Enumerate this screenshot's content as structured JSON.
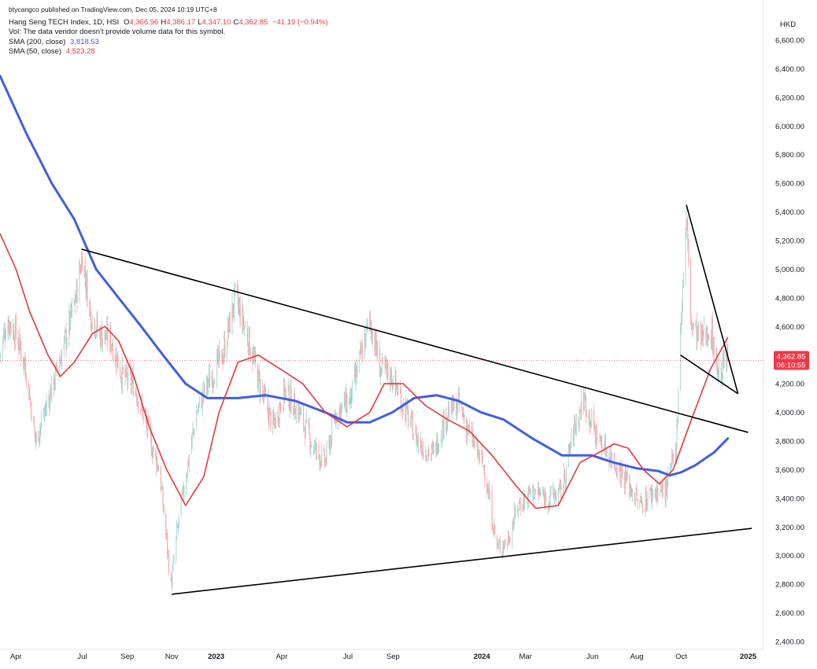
{
  "header": {
    "publisher": "btycangco published on TradingView.com, Dec 05, 2024 10:19 UTC+8",
    "symbol": "Hang Seng TECH Index, 1D, HSI",
    "ohlc": [
      {
        "k": "O",
        "v": "4,366.96"
      },
      {
        "k": "H",
        "v": "4,386.17"
      },
      {
        "k": "L",
        "v": "4,347.10"
      },
      {
        "k": "C",
        "v": "4,362.85"
      }
    ],
    "change": "−41.19 (−0.94%)",
    "vol_note": "Vol: The data vendor doesn't provide volume data for this symbol.",
    "sma200_label": "SMA (200, close)",
    "sma200_value": "3,818.53",
    "sma50_label": "SMA (50, close)",
    "sma50_value": "4,523.28"
  },
  "currency": "HKD",
  "price_badge": {
    "price": "4,362.85",
    "countdown": "06:10:55",
    "color": "#f23645"
  },
  "colors": {
    "up": "#089981",
    "down": "#f23645",
    "up_body": "#b2dfdb",
    "down_body": "#f7a9a7",
    "sma200": "#3f5fe0",
    "sma50": "#e0393e",
    "trendline": "#000000"
  },
  "chart_data": {
    "type": "candlestick",
    "title": "Hang Seng TECH Index, 1D, HSI",
    "ylabel": "HKD",
    "ylim": [
      2400,
      6700
    ],
    "y_ticks": [
      "6,600.00",
      "6,400.00",
      "6,200.00",
      "6,000.00",
      "5,800.00",
      "5,600.00",
      "5,400.00",
      "5,200.00",
      "5,000.00",
      "4,800.00",
      "4,600.00",
      "4,400.00",
      "4,200.00",
      "4,000.00",
      "3,800.00",
      "3,600.00",
      "3,400.00",
      "3,200.00",
      "3,000.00",
      "2,800.00",
      "2,600.00",
      "2,400.00"
    ],
    "x_ticks": [
      {
        "label": "Apr",
        "date": "2022-04-01",
        "bold": false
      },
      {
        "label": "Jul",
        "date": "2022-07-01",
        "bold": false
      },
      {
        "label": "Sep",
        "date": "2022-09-01",
        "bold": false
      },
      {
        "label": "Nov",
        "date": "2022-11-01",
        "bold": false
      },
      {
        "label": "2023",
        "date": "2023-01-01",
        "bold": true
      },
      {
        "label": "Apr",
        "date": "2023-04-01",
        "bold": false
      },
      {
        "label": "Jul",
        "date": "2023-07-01",
        "bold": false
      },
      {
        "label": "Sep",
        "date": "2023-09-01",
        "bold": false
      },
      {
        "label": "2024",
        "date": "2024-01-01",
        "bold": true
      },
      {
        "label": "Mar",
        "date": "2024-03-01",
        "bold": false
      },
      {
        "label": "Jun",
        "date": "2024-06-01",
        "bold": false
      },
      {
        "label": "Aug",
        "date": "2024-08-01",
        "bold": false
      },
      {
        "label": "Oct",
        "date": "2024-10-01",
        "bold": false
      },
      {
        "label": "2025",
        "date": "2025-01-01",
        "bold": true
      }
    ],
    "x_range": [
      "2022-03-10",
      "2025-01-22"
    ],
    "close_path": [
      [
        "2022-03-10",
        4400
      ],
      [
        "2022-03-20",
        4650
      ],
      [
        "2022-04-01",
        4550
      ],
      [
        "2022-04-15",
        4300
      ],
      [
        "2022-04-28",
        3800
      ],
      [
        "2022-05-10",
        4000
      ],
      [
        "2022-05-25",
        4250
      ],
      [
        "2022-06-10",
        4550
      ],
      [
        "2022-06-22",
        4800
      ],
      [
        "2022-07-01",
        5100
      ],
      [
        "2022-07-12",
        4700
      ],
      [
        "2022-07-25",
        4550
      ],
      [
        "2022-08-10",
        4500
      ],
      [
        "2022-08-25",
        4250
      ],
      [
        "2022-09-10",
        4200
      ],
      [
        "2022-09-25",
        3950
      ],
      [
        "2022-10-05",
        3750
      ],
      [
        "2022-10-15",
        3600
      ],
      [
        "2022-10-25",
        3100
      ],
      [
        "2022-10-31",
        2780
      ],
      [
        "2022-11-08",
        3150
      ],
      [
        "2022-11-20",
        3550
      ],
      [
        "2022-12-05",
        4000
      ],
      [
        "2022-12-20",
        4200
      ],
      [
        "2023-01-10",
        4400
      ],
      [
        "2023-01-27",
        4800
      ],
      [
        "2023-02-15",
        4500
      ],
      [
        "2023-03-01",
        4200
      ],
      [
        "2023-03-20",
        3900
      ],
      [
        "2023-04-05",
        4150
      ],
      [
        "2023-04-25",
        4000
      ],
      [
        "2023-05-15",
        3750
      ],
      [
        "2023-05-31",
        3650
      ],
      [
        "2023-06-15",
        4000
      ],
      [
        "2023-07-05",
        4100
      ],
      [
        "2023-07-31",
        4650
      ],
      [
        "2023-08-15",
        4300
      ],
      [
        "2023-08-31",
        4250
      ],
      [
        "2023-09-15",
        4050
      ],
      [
        "2023-10-05",
        3800
      ],
      [
        "2023-10-25",
        3700
      ],
      [
        "2023-11-15",
        4000
      ],
      [
        "2023-12-01",
        4050
      ],
      [
        "2023-12-15",
        3850
      ],
      [
        "2024-01-05",
        3600
      ],
      [
        "2024-01-22",
        3050
      ],
      [
        "2024-02-05",
        3100
      ],
      [
        "2024-02-20",
        3350
      ],
      [
        "2024-03-10",
        3450
      ],
      [
        "2024-03-31",
        3400
      ],
      [
        "2024-04-20",
        3450
      ],
      [
        "2024-05-05",
        3850
      ],
      [
        "2024-05-20",
        4100
      ],
      [
        "2024-06-05",
        3850
      ],
      [
        "2024-06-25",
        3700
      ],
      [
        "2024-07-15",
        3550
      ],
      [
        "2024-08-05",
        3350
      ],
      [
        "2024-08-25",
        3450
      ],
      [
        "2024-09-10",
        3450
      ],
      [
        "2024-09-24",
        3750
      ],
      [
        "2024-09-30",
        4600
      ],
      [
        "2024-10-08",
        5350
      ],
      [
        "2024-10-15",
        4600
      ],
      [
        "2024-10-28",
        4500
      ],
      [
        "2024-11-10",
        4600
      ],
      [
        "2024-11-22",
        4250
      ],
      [
        "2024-12-04",
        4400
      ]
    ],
    "sma200": [
      [
        "2022-03-10",
        6350
      ],
      [
        "2022-04-15",
        5950
      ],
      [
        "2022-05-20",
        5600
      ],
      [
        "2022-06-20",
        5350
      ],
      [
        "2022-07-20",
        5000
      ],
      [
        "2022-08-20",
        4800
      ],
      [
        "2022-09-20",
        4600
      ],
      [
        "2022-10-20",
        4400
      ],
      [
        "2022-11-20",
        4200
      ],
      [
        "2022-12-20",
        4100
      ],
      [
        "2023-01-31",
        4100
      ],
      [
        "2023-03-10",
        4120
      ],
      [
        "2023-04-20",
        4080
      ],
      [
        "2023-05-31",
        4000
      ],
      [
        "2023-06-30",
        3930
      ],
      [
        "2023-07-31",
        3930
      ],
      [
        "2023-08-31",
        4000
      ],
      [
        "2023-09-30",
        4100
      ],
      [
        "2023-10-31",
        4120
      ],
      [
        "2023-11-30",
        4080
      ],
      [
        "2023-12-31",
        4000
      ],
      [
        "2024-01-31",
        3950
      ],
      [
        "2024-03-10",
        3820
      ],
      [
        "2024-04-20",
        3700
      ],
      [
        "2024-05-31",
        3700
      ],
      [
        "2024-06-30",
        3650
      ],
      [
        "2024-07-31",
        3610
      ],
      [
        "2024-08-31",
        3590
      ],
      [
        "2024-09-15",
        3560
      ],
      [
        "2024-09-30",
        3580
      ],
      [
        "2024-10-20",
        3630
      ],
      [
        "2024-11-15",
        3720
      ],
      [
        "2024-12-04",
        3818
      ]
    ],
    "sma50": [
      [
        "2022-03-10",
        5250
      ],
      [
        "2022-04-01",
        5000
      ],
      [
        "2022-04-20",
        4700
      ],
      [
        "2022-05-15",
        4400
      ],
      [
        "2022-06-01",
        4250
      ],
      [
        "2022-06-20",
        4350
      ],
      [
        "2022-07-15",
        4550
      ],
      [
        "2022-08-01",
        4600
      ],
      [
        "2022-08-20",
        4500
      ],
      [
        "2022-09-10",
        4250
      ],
      [
        "2022-10-01",
        3900
      ],
      [
        "2022-10-25",
        3600
      ],
      [
        "2022-11-20",
        3350
      ],
      [
        "2022-12-15",
        3550
      ],
      [
        "2023-01-05",
        4000
      ],
      [
        "2023-01-31",
        4350
      ],
      [
        "2023-02-28",
        4400
      ],
      [
        "2023-03-31",
        4300
      ],
      [
        "2023-04-30",
        4200
      ],
      [
        "2023-05-31",
        4000
      ],
      [
        "2023-06-30",
        3900
      ],
      [
        "2023-07-31",
        4000
      ],
      [
        "2023-08-20",
        4200
      ],
      [
        "2023-09-15",
        4200
      ],
      [
        "2023-10-15",
        4050
      ],
      [
        "2023-11-15",
        3950
      ],
      [
        "2023-12-15",
        3870
      ],
      [
        "2024-01-15",
        3700
      ],
      [
        "2024-02-15",
        3500
      ],
      [
        "2024-03-15",
        3330
      ],
      [
        "2024-04-15",
        3350
      ],
      [
        "2024-05-15",
        3650
      ],
      [
        "2024-06-10",
        3720
      ],
      [
        "2024-07-01",
        3780
      ],
      [
        "2024-07-20",
        3750
      ],
      [
        "2024-08-10",
        3600
      ],
      [
        "2024-09-01",
        3500
      ],
      [
        "2024-09-20",
        3600
      ],
      [
        "2024-10-15",
        3950
      ],
      [
        "2024-11-10",
        4300
      ],
      [
        "2024-12-04",
        4523
      ]
    ],
    "trendlines": [
      {
        "name": "upper-resistance",
        "from": [
          "2022-06-30",
          5140
        ],
        "to": [
          "2025-01-01",
          3860
        ]
      },
      {
        "name": "lower-support",
        "from": [
          "2022-11-01",
          2730
        ],
        "to": [
          "2025-01-06",
          3190
        ]
      },
      {
        "name": "wedge-upper",
        "from": [
          "2024-10-08",
          5450
        ],
        "to": [
          "2024-12-18",
          4130
        ]
      },
      {
        "name": "wedge-lower",
        "from": [
          "2024-09-30",
          4400
        ],
        "to": [
          "2024-12-18",
          4130
        ]
      }
    ]
  }
}
